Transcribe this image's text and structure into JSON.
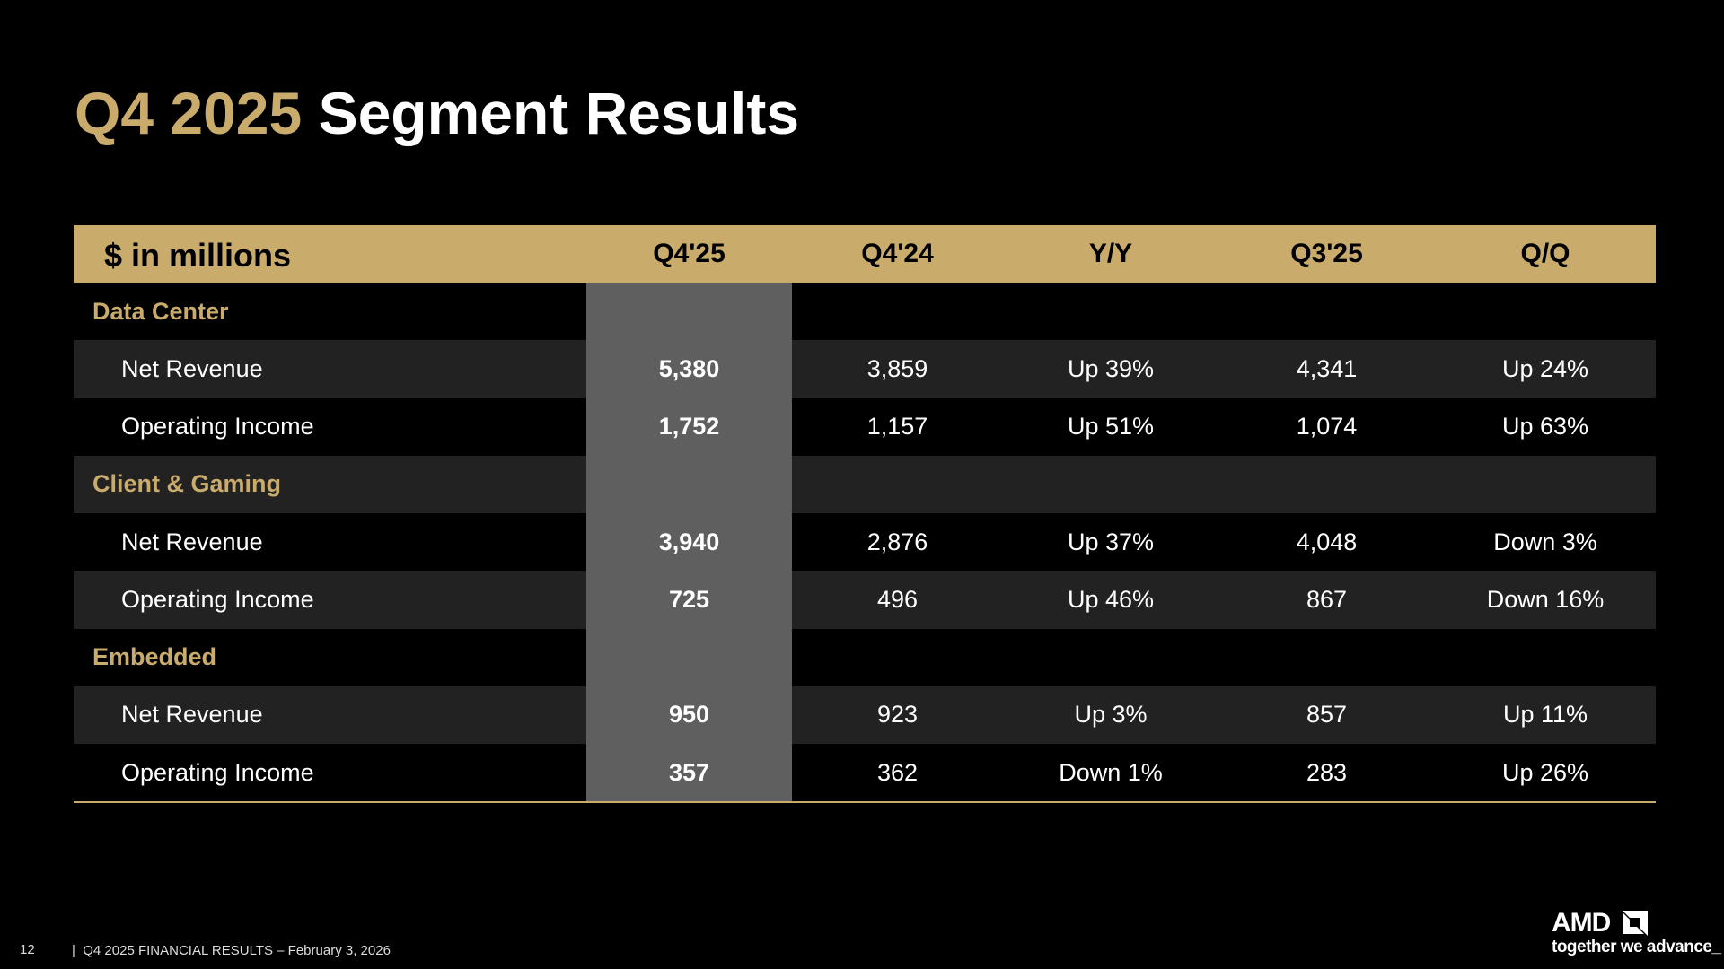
{
  "header": {
    "title_highlight": "Q4 2025",
    "title": "Segment Results"
  },
  "table": {
    "columns": [
      "$ in millions",
      "Q4'25",
      "Q4'24",
      "Y/Y",
      "Q3'25",
      "Q/Q"
    ],
    "sections": [
      {
        "name": "Data Center",
        "rows": [
          {
            "label": "Net Revenue",
            "values": [
              "5,380",
              "3,859",
              "Up 39%",
              "4,341",
              "Up 24%"
            ]
          },
          {
            "label": "Operating Income",
            "values": [
              "1,752",
              "1,157",
              "Up 51%",
              "1,074",
              "Up 63%"
            ]
          }
        ]
      },
      {
        "name": "Client & Gaming",
        "rows": [
          {
            "label": "Net Revenue",
            "values": [
              "3,940",
              "2,876",
              "Up 37%",
              "4,048",
              "Down 3%"
            ]
          },
          {
            "label": "Operating Income",
            "values": [
              "725",
              "496",
              "Up 46%",
              "867",
              "Down 16%"
            ]
          }
        ]
      },
      {
        "name": "Embedded",
        "rows": [
          {
            "label": "Net Revenue",
            "values": [
              "950",
              "923",
              "Up 3%",
              "857",
              "Up 11%"
            ]
          },
          {
            "label": "Operating Income",
            "values": [
              "357",
              "362",
              "Down 1%",
              "283",
              "Up 26%"
            ]
          }
        ]
      }
    ]
  },
  "footer": {
    "page_number": "12",
    "separator": "|",
    "text": "Q4 2025 FINANCIAL RESULTS – February 3, 2026"
  },
  "logo": {
    "brand": "AMD",
    "tagline": "together we advance_"
  }
}
